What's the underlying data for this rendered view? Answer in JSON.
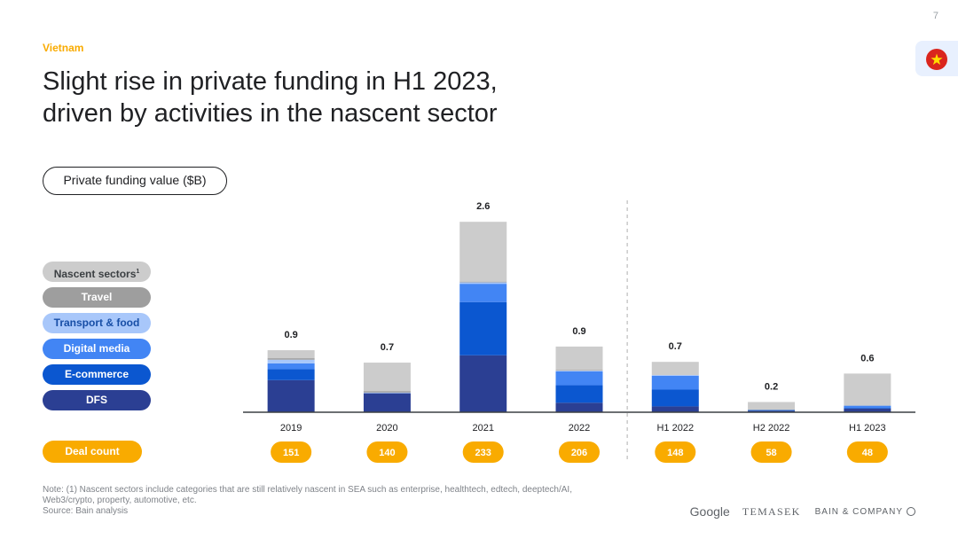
{
  "page": {
    "number": "7"
  },
  "header": {
    "country": "Vietnam",
    "title_lines": [
      "Slight rise in private funding in H1 2023,",
      "driven by activities in the nascent sector"
    ]
  },
  "metric_label": "Private funding value ($B)",
  "legend": {
    "items": [
      {
        "key": "nascent",
        "label": "Nascent sectors",
        "footnote": "1",
        "color": "#cccccc",
        "text_color": "#3c4043"
      },
      {
        "key": "travel",
        "label": "Travel",
        "footnote": "",
        "color": "#9e9e9e",
        "text_color": "#ffffff"
      },
      {
        "key": "transport",
        "label": "Transport & food",
        "footnote": "",
        "color": "#a8c7fa",
        "text_color": "#174ea6"
      },
      {
        "key": "digital",
        "label": "Digital media",
        "footnote": "",
        "color": "#4285f4",
        "text_color": "#ffffff"
      },
      {
        "key": "ecommerce",
        "label": "E-commerce",
        "footnote": "",
        "color": "#0b57d0",
        "text_color": "#ffffff"
      },
      {
        "key": "dfs",
        "label": "DFS",
        "footnote": "",
        "color": "#2b3f93",
        "text_color": "#ffffff"
      }
    ]
  },
  "chart_data": {
    "type": "bar",
    "stacked": true,
    "categories": [
      "2019",
      "2020",
      "2021",
      "2022",
      "H1 2022",
      "H2 2022",
      "H1 2023"
    ],
    "ylim": [
      0,
      2.6
    ],
    "grid": false,
    "divider_after_category": "2022",
    "totals": [
      "0.9",
      "0.7",
      "2.6",
      "0.9",
      "0.7",
      "0.2",
      "0.6"
    ],
    "series": [
      {
        "name": "DFS",
        "key": "dfs",
        "values": [
          0.44,
          0.26,
          0.78,
          0.13,
          0.08,
          0.02,
          0.05
        ]
      },
      {
        "name": "E-commerce",
        "key": "ecommerce",
        "values": [
          0.15,
          0.0,
          0.73,
          0.24,
          0.23,
          0.01,
          0.01
        ]
      },
      {
        "name": "Digital media",
        "key": "digital",
        "values": [
          0.08,
          0.0,
          0.25,
          0.19,
          0.19,
          0.0,
          0.03
        ]
      },
      {
        "name": "Transport & food",
        "key": "transport",
        "values": [
          0.05,
          0.01,
          0.02,
          0.01,
          0.01,
          0.0,
          0.0
        ]
      },
      {
        "name": "Travel",
        "key": "travel",
        "values": [
          0.02,
          0.02,
          0.01,
          0.01,
          0.0,
          0.0,
          0.0
        ]
      },
      {
        "name": "Nascent sectors",
        "key": "nascent",
        "values": [
          0.11,
          0.39,
          0.82,
          0.32,
          0.18,
          0.11,
          0.44
        ]
      }
    ],
    "deal_count": {
      "label": "Deal count",
      "values": [
        "151",
        "140",
        "233",
        "206",
        "148",
        "58",
        "48"
      ]
    }
  },
  "footer": {
    "note_lines": [
      "Note: (1) Nascent sectors include categories that are still relatively nascent in SEA such as enterprise, healthtech, edtech, deeptech/AI,",
      "Web3/crypto, property, automotive, etc.",
      "Source: Bain analysis"
    ],
    "logos": [
      "Google",
      "TEMASEK",
      "BAIN & COMPANY"
    ]
  },
  "colors": {
    "accent": "#f9ab00",
    "axis": "#3c4043",
    "divider": "#bdbdbd"
  }
}
